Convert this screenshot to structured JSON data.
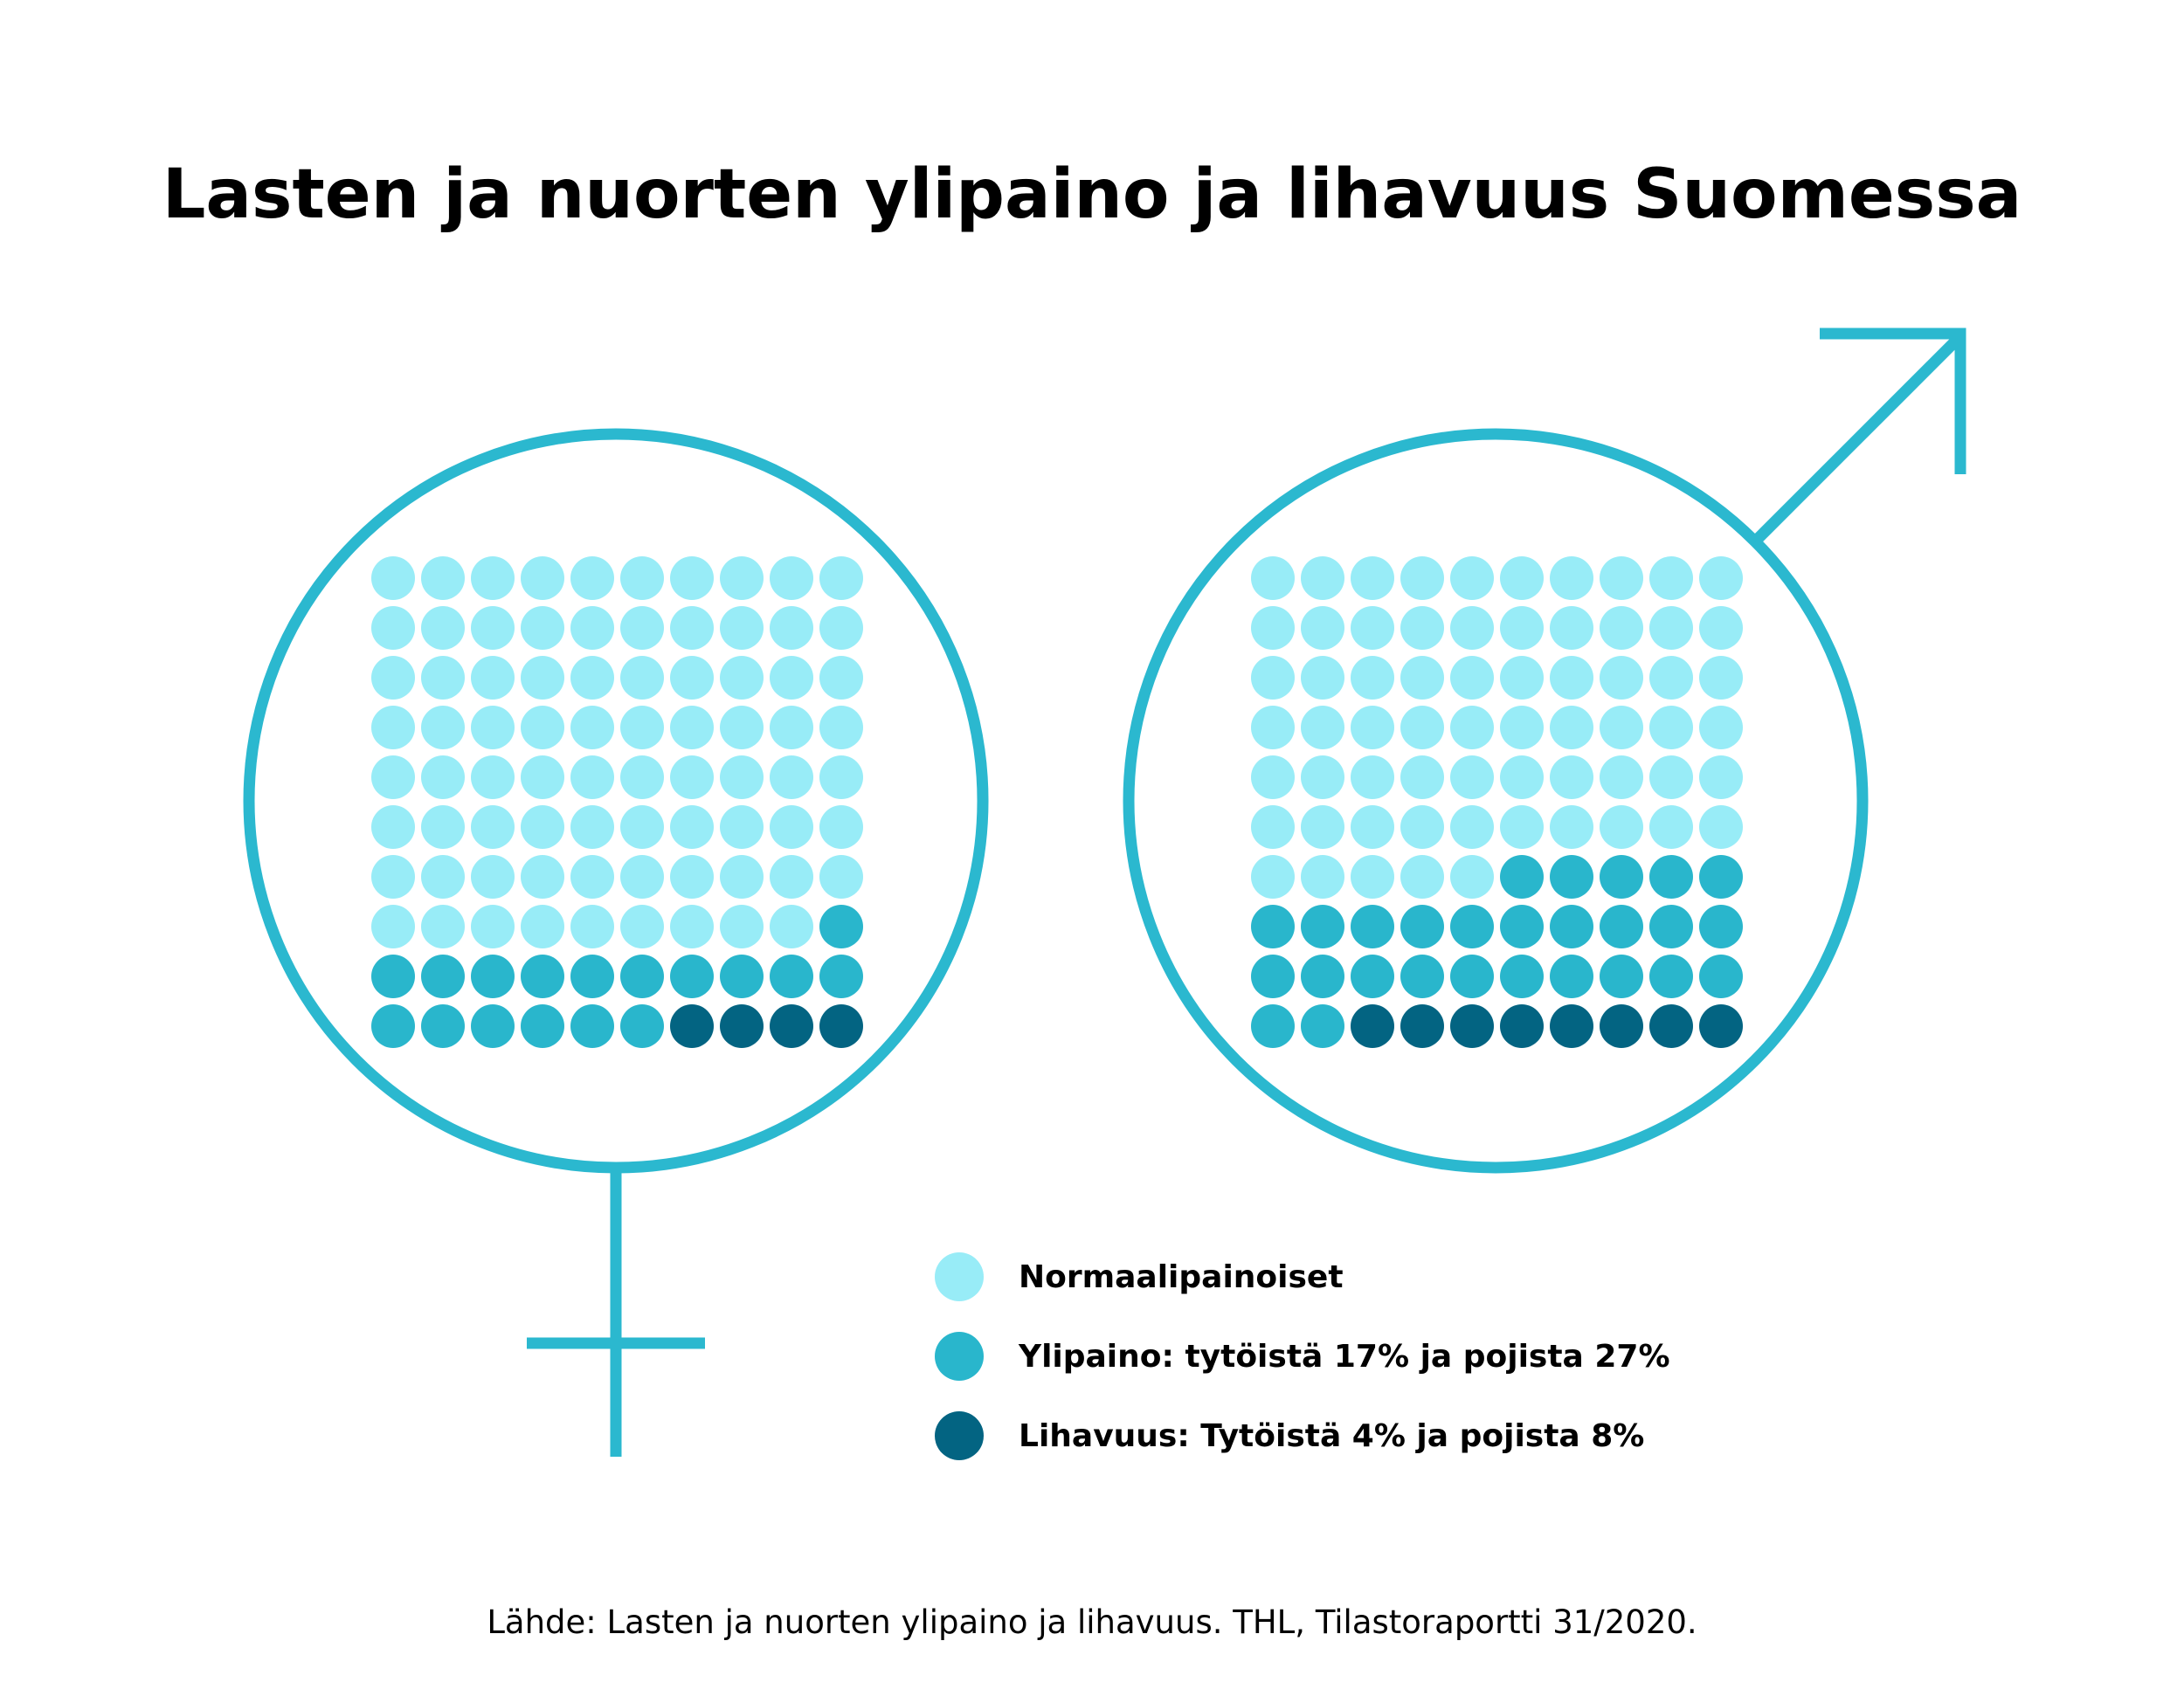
{
  "title": "Lasten ja nuorten ylipaino ja lihavuus Suomessa",
  "source": "Lähde: Lasten ja nuorten ylipaino ja lihavuus. THL, Tilastoraportti 31/2020.",
  "colors": {
    "symbol": "#2bb8cf",
    "normal": "#98ecf7",
    "overweight": "#29b6cc",
    "obese": "#036482"
  },
  "chart_data": {
    "type": "waffle",
    "grid": {
      "rows": 10,
      "cols": 10,
      "total": 100
    },
    "categories": [
      "Normaalipainoiset",
      "Ylipaino",
      "Lihavuus"
    ],
    "series": [
      {
        "symbol": "female-symbol",
        "values": [
          79,
          17,
          4
        ]
      },
      {
        "symbol": "male-symbol",
        "values": [
          65,
          27,
          8
        ]
      }
    ],
    "legend": [
      {
        "label": "Normaalipainoiset",
        "color": "#98ecf7"
      },
      {
        "label": "Ylipaino: tytöistä 17% ja pojista 27%",
        "color": "#29b6cc"
      },
      {
        "label": "Lihavuus: Tytöistä 4% ja pojista 8%",
        "color": "#036482"
      }
    ],
    "legend_position": "bottom-center"
  }
}
